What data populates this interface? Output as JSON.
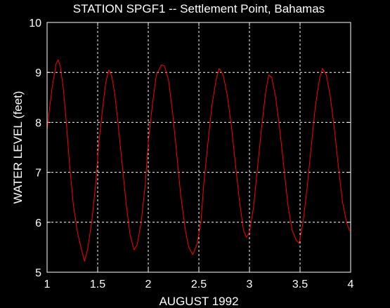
{
  "chart_data": {
    "type": "line",
    "title": "STATION SPGF1 -- Settlement Point, Bahamas",
    "xlabel": "AUGUST 1992",
    "ylabel": "WATER LEVEL (feet)",
    "xlim": [
      1,
      4
    ],
    "ylim": [
      5,
      10
    ],
    "xticks": [
      1,
      1.5,
      2,
      2.5,
      3,
      3.5,
      4
    ],
    "xtick_labels": [
      "1",
      "1.5",
      "2",
      "2.5",
      "3",
      "3.5",
      "4"
    ],
    "yticks": [
      5,
      6,
      7,
      8,
      9,
      10
    ],
    "ytick_labels": [
      "5",
      "6",
      "7",
      "8",
      "9",
      "10"
    ],
    "grid": true,
    "background_color": "#000000",
    "axes_color": "#ffffff",
    "series": [
      {
        "color": "#ff0000",
        "x": [
          1.0,
          1.02,
          1.05,
          1.09,
          1.11,
          1.13,
          1.16,
          1.19,
          1.22,
          1.26,
          1.3,
          1.34,
          1.37,
          1.4,
          1.44,
          1.48,
          1.51,
          1.55,
          1.58,
          1.61,
          1.64,
          1.67,
          1.7,
          1.74,
          1.78,
          1.82,
          1.86,
          1.89,
          1.93,
          1.97,
          2.0,
          2.04,
          2.08,
          2.13,
          2.16,
          2.2,
          2.24,
          2.28,
          2.32,
          2.37,
          2.4,
          2.44,
          2.48,
          2.52,
          2.55,
          2.59,
          2.63,
          2.67,
          2.7,
          2.74,
          2.78,
          2.82,
          2.86,
          2.9,
          2.94,
          2.97,
          3.0,
          3.04,
          3.08,
          3.12,
          3.16,
          3.19,
          3.22,
          3.26,
          3.3,
          3.34,
          3.38,
          3.42,
          3.46,
          3.49,
          3.53,
          3.57,
          3.61,
          3.65,
          3.69,
          3.72,
          3.76,
          3.8,
          3.84,
          3.88,
          3.92,
          3.96,
          3.99
        ],
        "values": [
          7.85,
          8.2,
          8.7,
          9.18,
          9.25,
          9.13,
          8.7,
          8.0,
          7.2,
          6.35,
          5.8,
          5.45,
          5.22,
          5.45,
          6.0,
          6.75,
          7.55,
          8.3,
          8.8,
          9.05,
          8.92,
          8.55,
          8.0,
          7.2,
          6.4,
          5.75,
          5.45,
          5.55,
          6.0,
          6.75,
          7.6,
          8.35,
          8.95,
          9.15,
          9.13,
          8.85,
          8.2,
          7.4,
          6.55,
          5.8,
          5.5,
          5.35,
          5.55,
          6.0,
          6.8,
          7.6,
          8.35,
          8.85,
          9.08,
          8.95,
          8.55,
          7.95,
          7.2,
          6.45,
          5.85,
          5.7,
          5.8,
          6.3,
          7.1,
          7.9,
          8.6,
          8.95,
          8.9,
          8.5,
          7.85,
          7.1,
          6.35,
          5.85,
          5.65,
          5.58,
          6.0,
          6.7,
          7.5,
          8.3,
          8.85,
          9.08,
          8.95,
          8.5,
          7.85,
          7.1,
          6.4,
          6.0,
          5.83
        ]
      }
    ]
  }
}
